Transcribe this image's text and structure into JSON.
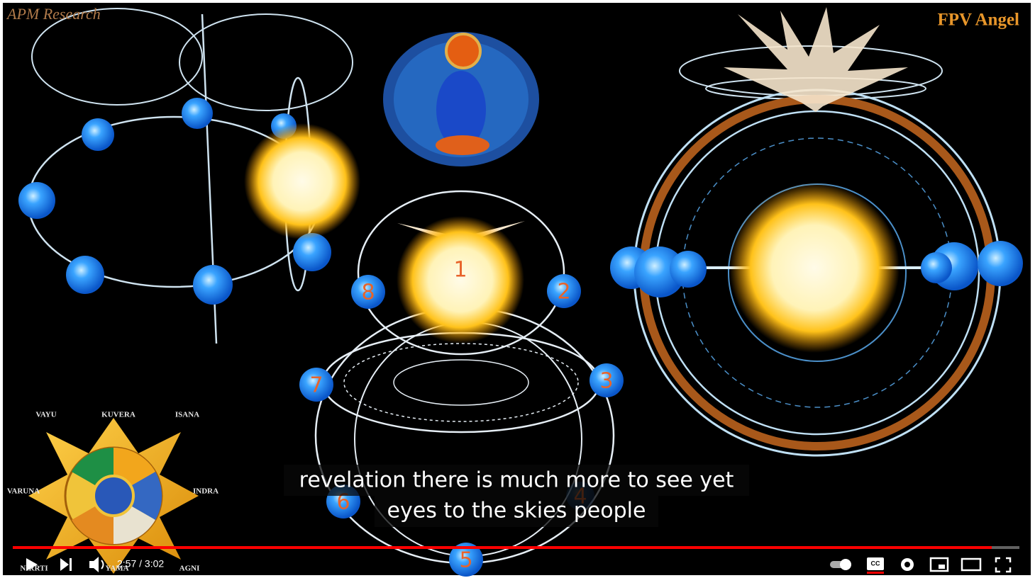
{
  "watermarks": {
    "left": "APM Research",
    "right": "FPV Angel"
  },
  "orbit_labels": [
    "1",
    "2",
    "3",
    "4",
    "5",
    "6",
    "7",
    "8"
  ],
  "mandala_labels": [
    "VAYU",
    "KUVERA",
    "ISANA",
    "VARUNA",
    "INDRA",
    "NIRRTI",
    "YAMA",
    "AGNI"
  ],
  "subtitles": [
    "revelation there is much more to see yet",
    "eyes to the skies people"
  ],
  "player": {
    "time": "2:57 / 3:02"
  }
}
